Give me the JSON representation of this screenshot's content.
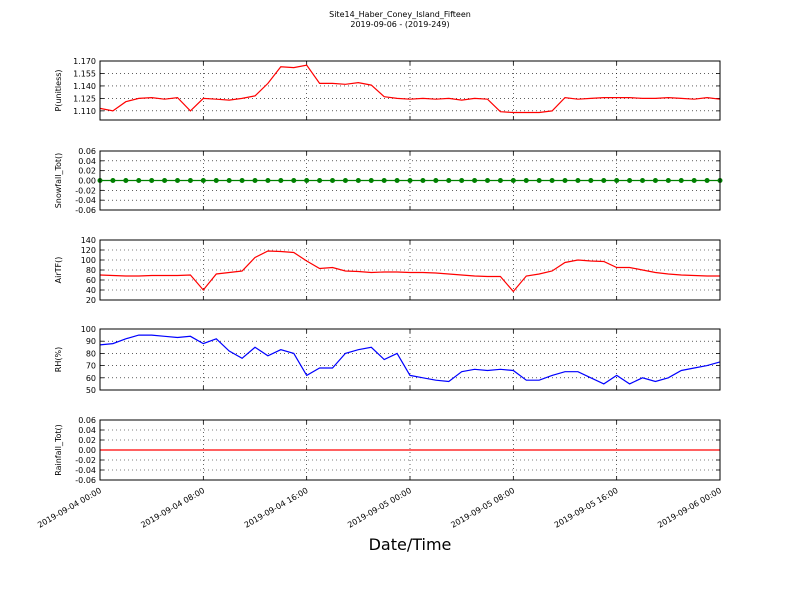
{
  "chart_data": {
    "type": "line",
    "title": "Site14_Haber_Coney_Island_Fifteen",
    "subtitle": "2019-09-06 - (2019-249)",
    "xlabel": "Date/Time",
    "xlim": [
      "2019-09-04 00:00",
      "2019-09-06 00:00"
    ],
    "xticks": [
      "2019-09-04 00:00",
      "2019-09-04 08:00",
      "2019-09-04 16:00",
      "2019-09-05 00:00",
      "2019-09-05 08:00",
      "2019-09-05 16:00",
      "2019-09-06 00:00"
    ],
    "grid": true,
    "x": [
      "2019-09-04 00:00",
      "2019-09-04 01:00",
      "2019-09-04 02:00",
      "2019-09-04 03:00",
      "2019-09-04 04:00",
      "2019-09-04 05:00",
      "2019-09-04 06:00",
      "2019-09-04 07:00",
      "2019-09-04 08:00",
      "2019-09-04 09:00",
      "2019-09-04 10:00",
      "2019-09-04 11:00",
      "2019-09-04 12:00",
      "2019-09-04 13:00",
      "2019-09-04 14:00",
      "2019-09-04 15:00",
      "2019-09-04 16:00",
      "2019-09-04 17:00",
      "2019-09-04 18:00",
      "2019-09-04 19:00",
      "2019-09-04 20:00",
      "2019-09-04 21:00",
      "2019-09-04 22:00",
      "2019-09-04 23:00",
      "2019-09-05 00:00",
      "2019-09-05 01:00",
      "2019-09-05 02:00",
      "2019-09-05 03:00",
      "2019-09-05 04:00",
      "2019-09-05 05:00",
      "2019-09-05 06:00",
      "2019-09-05 07:00",
      "2019-09-05 08:00",
      "2019-09-05 09:00",
      "2019-09-05 10:00",
      "2019-09-05 11:00",
      "2019-09-05 12:00",
      "2019-09-05 13:00",
      "2019-09-05 14:00",
      "2019-09-05 15:00",
      "2019-09-05 16:00",
      "2019-09-05 17:00",
      "2019-09-05 18:00",
      "2019-09-05 19:00",
      "2019-09-05 20:00",
      "2019-09-05 21:00",
      "2019-09-05 22:00",
      "2019-09-05 23:00",
      "2019-09-06 00:00"
    ],
    "panels": [
      {
        "ylabel": "P(unitless)",
        "ylim": [
          1.099,
          1.17
        ],
        "yticks": [
          {
            "value": 1.11,
            "label": "1.110"
          },
          1.125,
          {
            "value": 1.14,
            "label": "1.140"
          },
          1.155,
          {
            "value": 1.17,
            "label": "1.170"
          }
        ],
        "series": [
          {
            "color": "#ff0000",
            "values": [
              1.113,
              1.11,
              1.121,
              1.125,
              1.126,
              1.124,
              1.126,
              1.11,
              1.125,
              1.124,
              1.123,
              1.125,
              1.128,
              1.143,
              1.163,
              1.162,
              1.165,
              1.143,
              1.143,
              1.142,
              1.144,
              1.141,
              1.127,
              1.125,
              1.124,
              1.125,
              1.124,
              1.125,
              1.123,
              1.125,
              1.124,
              1.109,
              1.108,
              1.108,
              1.108,
              1.11,
              1.126,
              1.124,
              1.125,
              1.126,
              1.126,
              1.126,
              1.125,
              1.125,
              1.126,
              1.125,
              1.124,
              1.126,
              1.124
            ]
          }
        ]
      },
      {
        "ylabel": "Snowfall_Tot()",
        "ylim": [
          -0.06,
          0.06
        ],
        "yticks": [
          0.06,
          0.04,
          0.02,
          {
            "value": 0,
            "label": "0.00"
          },
          -0.02,
          -0.04,
          -0.06
        ],
        "series": [
          {
            "color": "#008000",
            "marker": true,
            "values": [
              0,
              0,
              0,
              0,
              0,
              0,
              0,
              0,
              0,
              0,
              0,
              0,
              0,
              0,
              0,
              0,
              0,
              0,
              0,
              0,
              0,
              0,
              0,
              0,
              0,
              0,
              0,
              0,
              0,
              0,
              0,
              0,
              0,
              0,
              0,
              0,
              0,
              0,
              0,
              0,
              0,
              0,
              0,
              0,
              0,
              0,
              0,
              0,
              0
            ]
          }
        ]
      },
      {
        "ylabel": "AirTF()",
        "ylim": [
          20,
          140
        ],
        "yticks": [
          140,
          120,
          100,
          80,
          60,
          40,
          20
        ],
        "series": [
          {
            "color": "#ff0000",
            "values": [
              70,
              69,
              68,
              68,
              69,
              69,
              69,
              70,
              40,
              72,
              75,
              78,
              105,
              118,
              117,
              115,
              98,
              83,
              85,
              78,
              77,
              75,
              76,
              76,
              75,
              75,
              74,
              72,
              70,
              68,
              67,
              67,
              37,
              68,
              72,
              78,
              95,
              100,
              98,
              97,
              85,
              85,
              80,
              75,
              72,
              70,
              69,
              68,
              68
            ]
          }
        ]
      },
      {
        "ylabel": "RH(%)",
        "ylim": [
          50,
          100
        ],
        "yticks": [
          100,
          90,
          80,
          70,
          60,
          50
        ],
        "series": [
          {
            "color": "#0000ff",
            "values": [
              87,
              88,
              92,
              95,
              95,
              94,
              93,
              94,
              88,
              92,
              82,
              76,
              85,
              78,
              83,
              80,
              62,
              68,
              68,
              80,
              83,
              85,
              75,
              80,
              62,
              60,
              58,
              57,
              65,
              67,
              66,
              67,
              66,
              58,
              58,
              62,
              65,
              65,
              60,
              55,
              62,
              55,
              60,
              57,
              60,
              66,
              68,
              70,
              73
            ]
          }
        ]
      },
      {
        "ylabel": "Rainfall_Tot()",
        "ylim": [
          -0.06,
          0.06
        ],
        "yticks": [
          0.06,
          0.04,
          0.02,
          {
            "value": 0,
            "label": "0.00"
          },
          -0.02,
          -0.04,
          -0.06
        ],
        "series": [
          {
            "color": "#ff0000",
            "values": [
              0,
              0,
              0,
              0,
              0,
              0,
              0,
              0,
              0,
              0,
              0,
              0,
              0,
              0,
              0,
              0,
              0,
              0,
              0,
              0,
              0,
              0,
              0,
              0,
              0,
              0,
              0,
              0,
              0,
              0,
              0,
              0,
              0,
              0,
              0,
              0,
              0,
              0,
              0,
              0,
              0,
              0,
              0,
              0,
              0,
              0,
              0,
              0,
              0
            ]
          }
        ]
      }
    ]
  }
}
